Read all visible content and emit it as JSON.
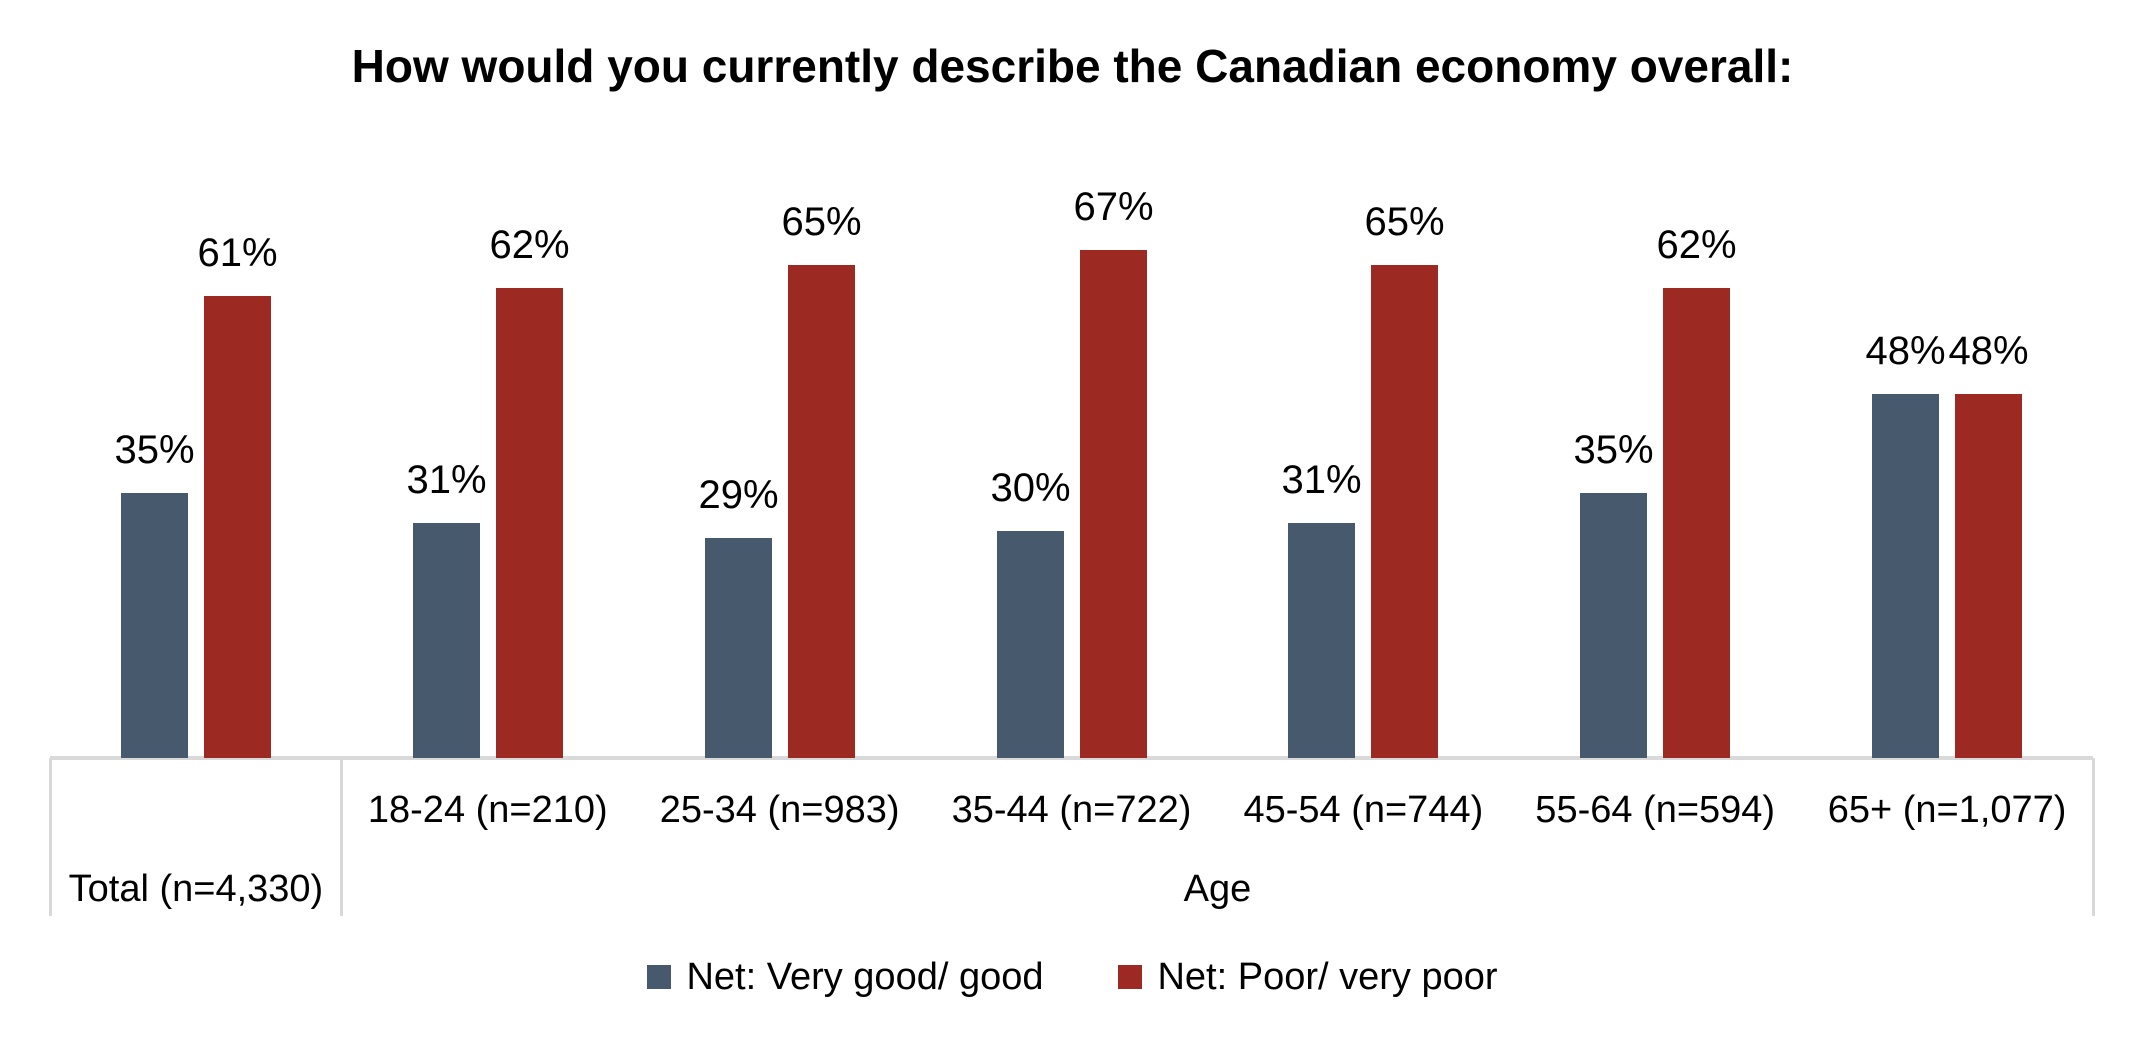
{
  "chart_data": {
    "type": "bar",
    "title": "How would you currently describe the Canadian economy overall:",
    "categories": [
      "Total (n=4,330)",
      "18-24 (n=210)",
      "25-34 (n=983)",
      "35-44 (n=722)",
      "45-54 (n=744)",
      "55-64 (n=594)",
      "65+ (n=1,077)"
    ],
    "category_axis_groups": [
      {
        "label": "Total (n=4,330)",
        "start": 0,
        "span": 1
      },
      {
        "label": "Age",
        "start": 1,
        "span": 6
      }
    ],
    "series": [
      {
        "name": "Net: Very good/ good",
        "color": "#47596D",
        "values": [
          35,
          31,
          29,
          30,
          31,
          35,
          48
        ]
      },
      {
        "name": "Net: Poor/ very poor",
        "color": "#9C2A22",
        "values": [
          61,
          62,
          65,
          67,
          65,
          62,
          48
        ]
      }
    ],
    "value_suffix": "%",
    "ylim": [
      0,
      70
    ],
    "grid": false,
    "data_labels": true,
    "legend_position": "bottom",
    "axis_line_color": "#D9D9D9",
    "text_color": "#000000",
    "background_color": "#FFFFFF"
  }
}
